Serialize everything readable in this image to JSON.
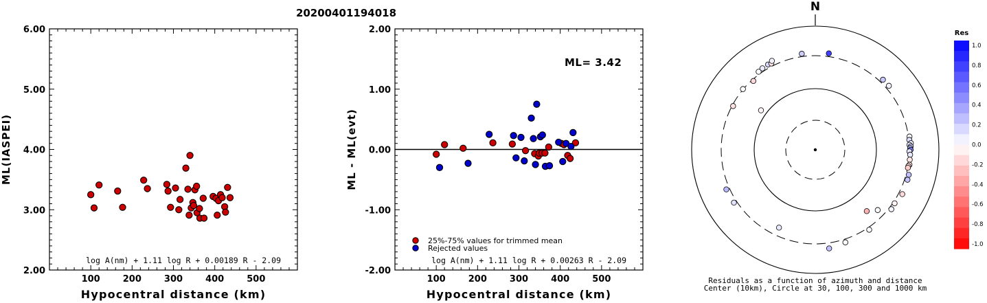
{
  "title": "20200401194018",
  "chart_data": [
    {
      "type": "scatter",
      "xlabel": "Hypocentral distance (km)",
      "ylabel": "ML(IASPEI)",
      "xlim": [
        0,
        600
      ],
      "ylim": [
        2.0,
        6.0
      ],
      "xticks": [
        "100",
        "200",
        "300",
        "400",
        "500"
      ],
      "yticks": [
        "2.00",
        "3.00",
        "4.00",
        "5.00",
        "6.00"
      ],
      "formula": "log A(nm) + 1.11 log R + 0.00189 R - 2.09",
      "series": [
        {
          "color": "#cc0000",
          "points": [
            [
              100,
              3.25
            ],
            [
              108,
              3.03
            ],
            [
              120,
              3.41
            ],
            [
              165,
              3.31
            ],
            [
              177,
              3.04
            ],
            [
              228,
              3.49
            ],
            [
              237,
              3.35
            ],
            [
              284,
              3.42
            ],
            [
              287,
              3.31
            ],
            [
              293,
              3.04
            ],
            [
              305,
              3.36
            ],
            [
              313,
              3.0
            ],
            [
              316,
              3.17
            ],
            [
              330,
              3.69
            ],
            [
              335,
              3.34
            ],
            [
              338,
              2.91
            ],
            [
              340,
              3.9
            ],
            [
              343,
              3.03
            ],
            [
              347,
              3.12
            ],
            [
              349,
              3.07
            ],
            [
              352,
              3.33
            ],
            [
              356,
              3.39
            ],
            [
              357,
              2.95
            ],
            [
              363,
              3.02
            ],
            [
              364,
              2.86
            ],
            [
              372,
              3.19
            ],
            [
              374,
              2.86
            ],
            [
              396,
              3.22
            ],
            [
              403,
              3.19
            ],
            [
              406,
              2.91
            ],
            [
              409,
              3.15
            ],
            [
              414,
              3.25
            ],
            [
              418,
              3.2
            ],
            [
              424,
              3.05
            ],
            [
              426,
              2.96
            ],
            [
              431,
              3.37
            ],
            [
              437,
              3.2
            ]
          ]
        }
      ]
    },
    {
      "type": "scatter",
      "xlabel": "Hypocentral distance (km)",
      "ylabel": "ML - ML(evt)",
      "xlim": [
        0,
        600
      ],
      "ylim": [
        -2.0,
        2.0
      ],
      "xticks": [
        "100",
        "200",
        "300",
        "400",
        "500"
      ],
      "yticks": [
        "-2.00",
        "-1.00",
        "0.00",
        "1.00",
        "2.00"
      ],
      "reference_line": 0.0,
      "annotation": "ML= 3.42",
      "formula": "log A(nm) + 1.11 log R + 0.00263 R - 2.09",
      "legend": {
        "position": "bottom-left"
      },
      "series": [
        {
          "name": "25%-75% values for trimmed mean",
          "color": "#cc0000",
          "points": [
            [
              100,
              -0.08
            ],
            [
              120,
              0.08
            ],
            [
              165,
              0.02
            ],
            [
              237,
              0.11
            ],
            [
              284,
              0.09
            ],
            [
              316,
              -0.02
            ],
            [
              338,
              -0.07
            ],
            [
              347,
              -0.11
            ],
            [
              349,
              -0.06
            ],
            [
              356,
              -0.06
            ],
            [
              363,
              -0.06
            ],
            [
              372,
              0.04
            ],
            [
              403,
              0.1
            ],
            [
              409,
              0.08
            ],
            [
              418,
              -0.1
            ],
            [
              424,
              -0.15
            ],
            [
              437,
              0.11
            ]
          ]
        },
        {
          "name": "Rejected values",
          "color": "#0000cc",
          "points": [
            [
              108,
              -0.3
            ],
            [
              177,
              -0.23
            ],
            [
              228,
              0.25
            ],
            [
              287,
              0.23
            ],
            [
              293,
              -0.14
            ],
            [
              305,
              0.2
            ],
            [
              313,
              -0.19
            ],
            [
              330,
              0.52
            ],
            [
              335,
              0.18
            ],
            [
              340,
              -0.25
            ],
            [
              343,
              0.75
            ],
            [
              352,
              0.21
            ],
            [
              357,
              0.24
            ],
            [
              364,
              -0.28
            ],
            [
              374,
              -0.27
            ],
            [
              396,
              0.12
            ],
            [
              406,
              -0.2
            ],
            [
              414,
              0.1
            ],
            [
              426,
              0.05
            ],
            [
              431,
              0.28
            ]
          ]
        }
      ]
    },
    {
      "type": "scatter",
      "subtype": "polar",
      "north_label": "N",
      "caption": [
        "Residuals as a function of azimuth and distance",
        "Center (10km), Circle at 30, 100, 300 and 1000 km"
      ],
      "colorbar": {
        "title": "Res",
        "ticks": [
          "1.0",
          "0.8",
          "0.6",
          "0.4",
          "0.2",
          "0.0",
          "-0.2",
          "-0.4",
          "-0.6",
          "-0.8",
          "-1.0"
        ]
      },
      "points_azimuth_distance_residual": [
        [
          324,
          330,
          0.02
        ],
        [
          327,
          339,
          0.08
        ],
        [
          331,
          344,
          0.15
        ],
        [
          333,
          335,
          -0.1
        ],
        [
          334,
          365,
          0.05
        ],
        [
          310,
          304,
          0.01
        ],
        [
          318,
          285,
          -0.15
        ],
        [
          298,
          290,
          -0.11
        ],
        [
          306,
          122,
          -0.04
        ],
        [
          352,
          337,
          0.2
        ],
        [
          8,
          342,
          0.75
        ],
        [
          44,
          343,
          0.21
        ],
        [
          49,
          345,
          0.05
        ],
        [
          82,
          313,
          0.02
        ],
        [
          84,
          305,
          0.12
        ],
        [
          86,
          322,
          0.08
        ],
        [
          87,
          302,
          0.1
        ],
        [
          88,
          318,
          0.18
        ],
        [
          89,
          310,
          0.23
        ],
        [
          90,
          316,
          0.52
        ],
        [
          91,
          300,
          0.1
        ],
        [
          93,
          311,
          0.09
        ],
        [
          96,
          311,
          -0.1
        ],
        [
          99,
          316,
          -0.15
        ],
        [
          100,
          305,
          -0.07
        ],
        [
          101,
          303,
          -0.2
        ],
        [
          105,
          334,
          0.25
        ],
        [
          108,
          337,
          0.23
        ],
        [
          117,
          347,
          -0.15
        ],
        [
          124,
          320,
          -0.05
        ],
        [
          128,
          331,
          0.04
        ],
        [
          146,
          330,
          0.02
        ],
        [
          172,
          375,
          0.24
        ],
        [
          162,
          342,
          0.01
        ],
        [
          140,
          188,
          -0.3
        ],
        [
          134,
          235,
          0.01
        ],
        [
          205,
          228,
          0.09
        ],
        [
          237,
          338,
          0.11
        ],
        [
          246,
          343,
          0.28
        ]
      ]
    }
  ]
}
